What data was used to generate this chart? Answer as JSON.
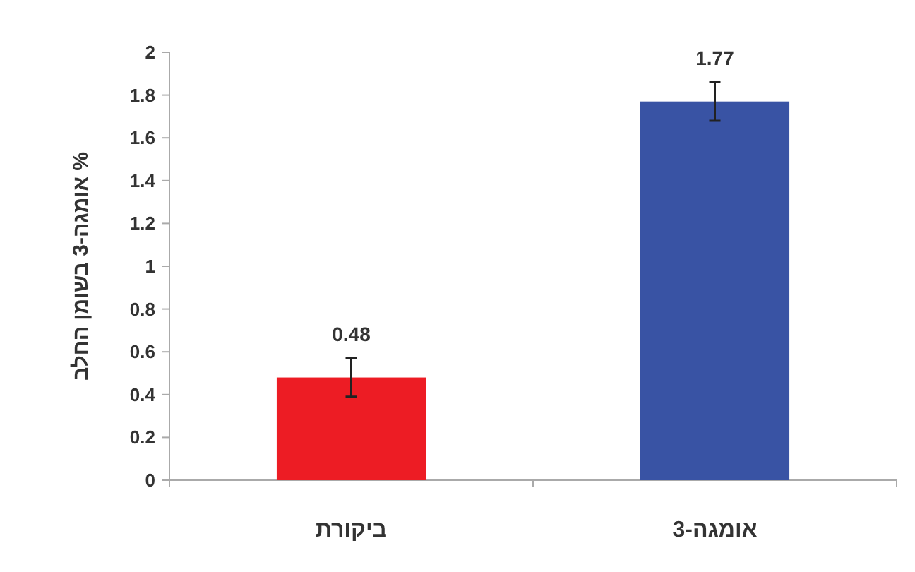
{
  "chart_data": {
    "type": "bar",
    "ylabel": "% אומגה-3 בשומן החלב",
    "categories": [
      "ביקורת",
      "אומגה-3"
    ],
    "values": [
      0.48,
      1.77
    ],
    "colors": [
      "#ed1c24",
      "#3953a4"
    ],
    "errors": [
      0.09,
      0.09
    ],
    "ylim": [
      0,
      2
    ],
    "yticks": [
      0,
      0.2,
      0.4,
      0.6,
      0.8,
      1,
      1.2,
      1.4,
      1.6,
      1.8,
      2
    ],
    "grid": false,
    "data_labels": true
  }
}
